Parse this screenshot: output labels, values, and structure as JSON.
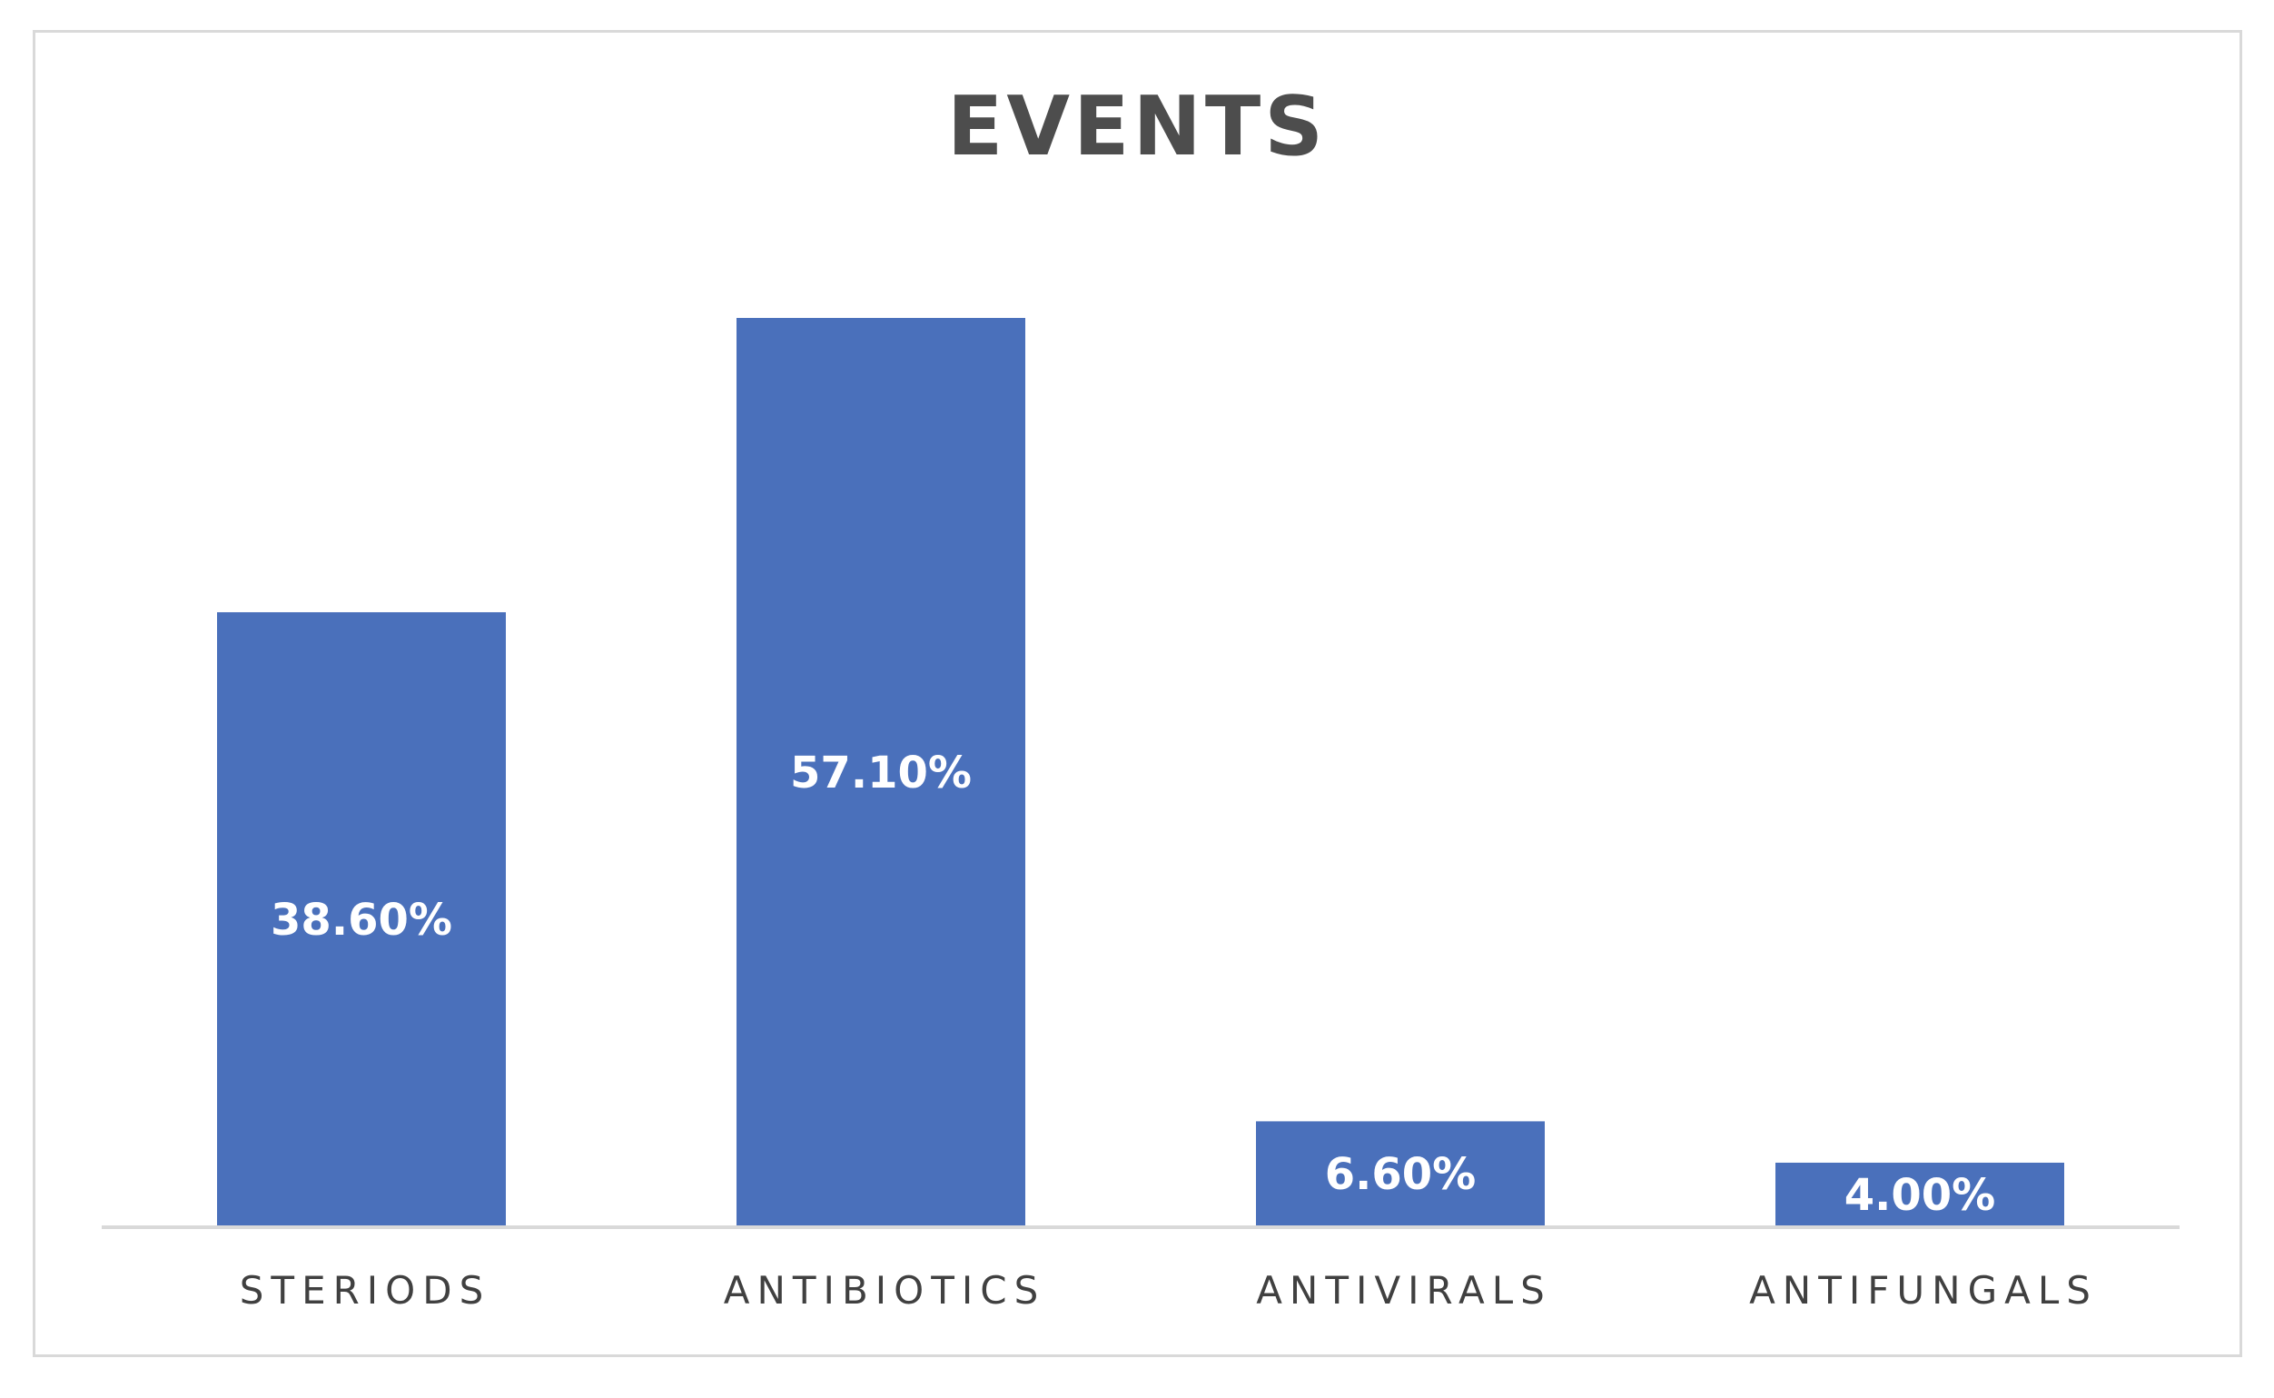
{
  "chart_data": {
    "type": "bar",
    "title": "EVENTS",
    "categories": [
      "STERIODS",
      "ANTIBIOTICS",
      "ANTIVIRALS",
      "ANTIFUNGALS"
    ],
    "values": [
      38.6,
      57.1,
      6.6,
      4.0
    ],
    "data_labels": [
      "38.60%",
      "57.10%",
      "6.60%",
      "4.00%"
    ],
    "ylim": [
      0,
      60
    ],
    "grid": false,
    "legend": "none",
    "bar_color": "#4a70bb",
    "axis_color": "#d9d9d9"
  }
}
